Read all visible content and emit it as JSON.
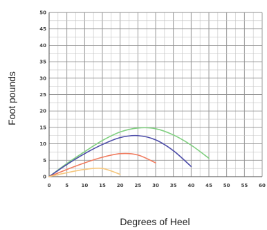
{
  "chart_data": {
    "type": "line",
    "title": "",
    "xlabel": "Degrees of Heel",
    "ylabel": "Foot pounds",
    "xlim": [
      0,
      60
    ],
    "ylim": [
      0,
      50
    ],
    "x_ticks": [
      0,
      5,
      10,
      15,
      20,
      25,
      30,
      35,
      40,
      45,
      50,
      55,
      60
    ],
    "y_ticks": [
      0,
      5,
      10,
      15,
      20,
      25,
      30,
      35,
      40,
      45,
      50
    ],
    "grid": true,
    "legend": "none",
    "series": [
      {
        "color": "#7fcf7f",
        "x": [
          0,
          5,
          10,
          15,
          20,
          25,
          30,
          35,
          40,
          45
        ],
        "y": [
          0,
          4.0,
          7.6,
          11.0,
          13.6,
          14.8,
          14.6,
          12.7,
          9.6,
          5.6
        ]
      },
      {
        "color": "#4c4ca8",
        "x": [
          0,
          5,
          10,
          15,
          20,
          25,
          30,
          35,
          40
        ],
        "y": [
          0,
          3.7,
          7.0,
          9.8,
          11.9,
          12.5,
          11.2,
          7.9,
          3.1
        ]
      },
      {
        "color": "#f07b5e",
        "x": [
          0,
          5,
          10,
          15,
          20,
          25,
          30
        ],
        "y": [
          0,
          2.2,
          4.2,
          5.9,
          7.0,
          6.6,
          4.2
        ]
      },
      {
        "color": "#f5c77d",
        "x": [
          0,
          5,
          10,
          15,
          20
        ],
        "y": [
          0,
          1.2,
          2.2,
          2.5,
          0.7
        ]
      }
    ]
  }
}
